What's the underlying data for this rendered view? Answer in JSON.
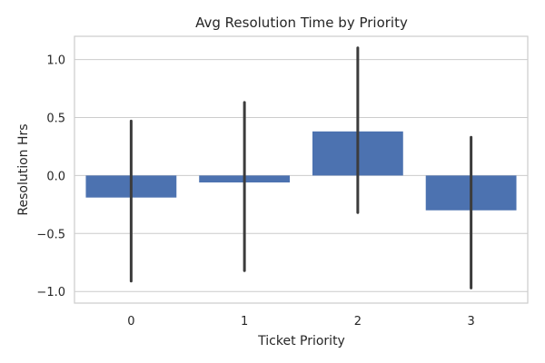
{
  "chart_data": {
    "type": "bar",
    "title": "Avg Resolution Time by Priority",
    "xlabel": "Ticket Priority",
    "ylabel": "Resolution Hrs",
    "categories": [
      "0",
      "1",
      "2",
      "3"
    ],
    "values": [
      -0.19,
      -0.06,
      0.38,
      -0.3
    ],
    "error_low": [
      -0.91,
      -0.82,
      -0.32,
      -0.97
    ],
    "error_high": [
      0.47,
      0.63,
      1.1,
      0.33
    ],
    "ylim": [
      -1.1,
      1.2
    ],
    "yticks": [
      -1.0,
      -0.5,
      0.0,
      0.5,
      1.0
    ],
    "ytick_labels": [
      "−1.0",
      "−0.5",
      "0.0",
      "0.5",
      "1.0"
    ],
    "grid": "horizontal",
    "bar_color": "#4c72b0",
    "errorbar_color": "#3c3c3c"
  }
}
